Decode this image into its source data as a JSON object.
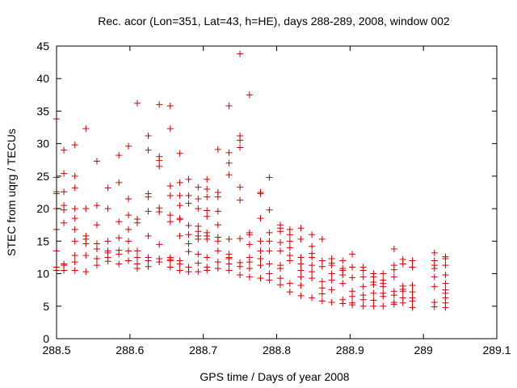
{
  "chart_data": {
    "type": "scatter",
    "title": "Rec. acor (Lon=351, Lat=43, h=HE), days 288-289, 2008, window 002",
    "xlabel": "GPS time / Days of year 2008",
    "ylabel": "STEC from uqrg / TECUs",
    "xlim": [
      288.5,
      289.1
    ],
    "ylim": [
      0,
      45
    ],
    "x_ticks": [
      288.5,
      288.6,
      288.7,
      288.8,
      288.9,
      289,
      289.1
    ],
    "x_tick_labels": [
      "288.5",
      "288.6",
      "288.7",
      "288.8",
      "288.9",
      "289",
      "289.1"
    ],
    "y_ticks": [
      0,
      5,
      10,
      15,
      20,
      25,
      30,
      35,
      40,
      45
    ],
    "y_tick_labels": [
      "0",
      "5",
      "10",
      "15",
      "20",
      "25",
      "30",
      "35",
      "40",
      "45"
    ],
    "marker": "+",
    "marker_color": "#cc0000",
    "series": [
      {
        "name": "STEC",
        "x": [
          288.5,
          288.5,
          288.5,
          288.5,
          288.5,
          288.5,
          288.5,
          288.5,
          288.5,
          288.51,
          288.51,
          288.51,
          288.51,
          288.51,
          288.51,
          288.51,
          288.51,
          288.51,
          288.525,
          288.525,
          288.525,
          288.525,
          288.525,
          288.525,
          288.525,
          288.525,
          288.525,
          288.525,
          288.54,
          288.54,
          288.54,
          288.54,
          288.54,
          288.54,
          288.54,
          288.555,
          288.555,
          288.555,
          288.555,
          288.555,
          288.555,
          288.555,
          288.57,
          288.57,
          288.57,
          288.57,
          288.57,
          288.57,
          288.57,
          288.585,
          288.585,
          288.585,
          288.585,
          288.585,
          288.585,
          288.585,
          288.598,
          288.598,
          288.598,
          288.598,
          288.598,
          288.598,
          288.598,
          288.61,
          288.61,
          288.61,
          288.61,
          288.61,
          288.61,
          288.61,
          288.625,
          288.625,
          288.625,
          288.625,
          288.625,
          288.625,
          288.625,
          288.625,
          288.625,
          288.64,
          288.64,
          288.64,
          288.64,
          288.64,
          288.64,
          288.64,
          288.64,
          288.64,
          288.655,
          288.655,
          288.655,
          288.655,
          288.655,
          288.655,
          288.655,
          288.655,
          288.655,
          288.655,
          288.668,
          288.668,
          288.668,
          288.668,
          288.668,
          288.668,
          288.668,
          288.668,
          288.668,
          288.668,
          288.68,
          288.68,
          288.68,
          288.68,
          288.68,
          288.68,
          288.68,
          288.68,
          288.68,
          288.693,
          288.693,
          288.693,
          288.693,
          288.693,
          288.693,
          288.693,
          288.693,
          288.693,
          288.693,
          288.705,
          288.705,
          288.705,
          288.705,
          288.705,
          288.705,
          288.705,
          288.705,
          288.705,
          288.705,
          288.705,
          288.72,
          288.72,
          288.72,
          288.72,
          288.72,
          288.72,
          288.72,
          288.72,
          288.72,
          288.72,
          288.735,
          288.735,
          288.735,
          288.735,
          288.735,
          288.735,
          288.735,
          288.735,
          288.735,
          288.735,
          288.75,
          288.75,
          288.75,
          288.75,
          288.75,
          288.75,
          288.75,
          288.75,
          288.75,
          288.75,
          288.763,
          288.763,
          288.763,
          288.763,
          288.763,
          288.763,
          288.763,
          288.763,
          288.778,
          288.778,
          288.778,
          288.778,
          288.778,
          288.778,
          288.778,
          288.778,
          288.79,
          288.79,
          288.79,
          288.79,
          288.79,
          288.79,
          288.79,
          288.79,
          288.805,
          288.805,
          288.805,
          288.805,
          288.805,
          288.805,
          288.805,
          288.805,
          288.805,
          288.818,
          288.818,
          288.818,
          288.818,
          288.818,
          288.818,
          288.818,
          288.818,
          288.833,
          288.833,
          288.833,
          288.833,
          288.833,
          288.833,
          288.833,
          288.833,
          288.848,
          288.848,
          288.848,
          288.848,
          288.848,
          288.848,
          288.848,
          288.848,
          288.862,
          288.862,
          288.862,
          288.862,
          288.862,
          288.862,
          288.862,
          288.875,
          288.875,
          288.875,
          288.875,
          288.875,
          288.875,
          288.875,
          288.89,
          288.89,
          288.89,
          288.89,
          288.89,
          288.89,
          288.89,
          288.903,
          288.903,
          288.903,
          288.903,
          288.903,
          288.903,
          288.903,
          288.918,
          288.918,
          288.918,
          288.918,
          288.918,
          288.918,
          288.918,
          288.932,
          288.932,
          288.932,
          288.932,
          288.932,
          288.932,
          288.932,
          288.945,
          288.945,
          288.945,
          288.945,
          288.945,
          288.945,
          288.945,
          288.96,
          288.96,
          288.96,
          288.96,
          288.96,
          288.96,
          288.96,
          288.96,
          288.972,
          288.972,
          288.972,
          288.972,
          288.972,
          288.972,
          288.972,
          288.985,
          288.985,
          288.985,
          288.985,
          288.985,
          288.985,
          288.985,
          289.015,
          289.015,
          289.015,
          289.015,
          289.015,
          289.015,
          289.015,
          289.015,
          289.03,
          289.03,
          289.03,
          289.03,
          289.03,
          289.03,
          289.03,
          289.03,
          289.03,
          289.03
        ],
        "y": [
          10.5,
          11,
          13.5,
          16.8,
          20,
          22.3,
          22.6,
          24.8,
          33.8,
          10.5,
          11.3,
          11.5,
          17.8,
          19.8,
          20.5,
          22.6,
          25.4,
          29,
          10.5,
          11.8,
          12.8,
          15,
          16.8,
          18.5,
          20,
          23.2,
          25,
          29.8,
          10.3,
          12.8,
          14.6,
          15.3,
          15.8,
          20,
          32.3,
          11.3,
          12.3,
          13.8,
          14.6,
          17.5,
          20.5,
          27.3,
          11.9,
          12.5,
          13.2,
          13.5,
          15,
          20,
          23.2,
          11.5,
          13,
          13.6,
          15.5,
          18,
          24,
          28.2,
          12,
          13.5,
          15,
          16.8,
          19,
          21.5,
          29.6,
          10.8,
          11.5,
          12.5,
          13.5,
          17.8,
          18.4,
          36.2,
          11.1,
          12,
          12.5,
          15.8,
          19.6,
          21.8,
          22.3,
          29,
          31.2,
          11.8,
          12.3,
          14.5,
          19.5,
          20.1,
          26.5,
          27.4,
          28,
          36,
          11,
          12,
          12.2,
          12.5,
          18,
          19,
          22,
          23.5,
          32.3,
          35.8,
          10.5,
          11.5,
          12,
          15.8,
          18.3,
          18.5,
          20.5,
          22,
          24,
          28.5,
          10.3,
          11,
          13.4,
          14.6,
          16,
          17.4,
          20.8,
          22,
          24.5,
          10.3,
          11.6,
          13,
          15.3,
          15.8,
          16.5,
          17.3,
          20,
          21.5,
          23.3,
          10.5,
          11,
          12.5,
          15.3,
          15.8,
          16.3,
          18.8,
          19.7,
          21.8,
          23,
          24.5,
          10.8,
          11.8,
          13.5,
          15,
          15.6,
          17.5,
          19.6,
          21.8,
          22.5,
          29.1,
          10.5,
          11.5,
          12.3,
          12.5,
          13,
          15.3,
          25.2,
          27,
          28.6,
          35.8,
          9.8,
          11.1,
          11.7,
          15.4,
          21.3,
          23.3,
          29.4,
          30.5,
          31.2,
          43.8,
          9.5,
          10.8,
          11.8,
          12.5,
          14.5,
          16,
          16.3,
          37.5,
          9.3,
          11.3,
          12.3,
          13.5,
          15,
          18.5,
          22.3,
          22.5,
          9,
          10,
          11.5,
          13.5,
          15,
          16.3,
          19.8,
          24.8,
          8.3,
          9.3,
          10.8,
          11.3,
          13.5,
          14.8,
          16.5,
          17,
          17.5,
          7.2,
          8.5,
          12,
          12.8,
          14,
          15,
          16,
          16.8,
          6.6,
          8.2,
          9.5,
          10.5,
          11.5,
          12.5,
          15.3,
          17,
          6.3,
          9.3,
          10.3,
          11.3,
          12.5,
          13.1,
          14.2,
          16,
          5.8,
          6.9,
          7.8,
          8.8,
          11.1,
          12,
          15.3,
          5.6,
          7.5,
          9,
          10,
          11.3,
          11.6,
          12.3,
          5.4,
          6,
          8.5,
          9.8,
          10.5,
          10.8,
          12,
          5.2,
          5.5,
          6.5,
          7.3,
          9.4,
          11,
          13,
          5,
          6,
          6.7,
          8,
          9.5,
          10.5,
          11,
          5,
          5.9,
          7,
          8.3,
          8.7,
          9.5,
          10,
          5,
          6.5,
          7,
          8,
          8.5,
          9,
          10,
          5.3,
          5.6,
          6.7,
          7.3,
          9.5,
          10.6,
          11.3,
          13.8,
          5.5,
          6.3,
          7.3,
          7.6,
          8.1,
          11.5,
          12.2,
          4.8,
          5.8,
          6.3,
          7.2,
          8.2,
          11,
          12,
          4.9,
          5.6,
          8,
          9.5,
          10.8,
          11.3,
          12,
          13.2,
          4.8,
          5.5,
          6.3,
          7,
          7.5,
          8.5,
          9.8,
          11.3,
          12.3,
          12.6
        ]
      }
    ]
  }
}
